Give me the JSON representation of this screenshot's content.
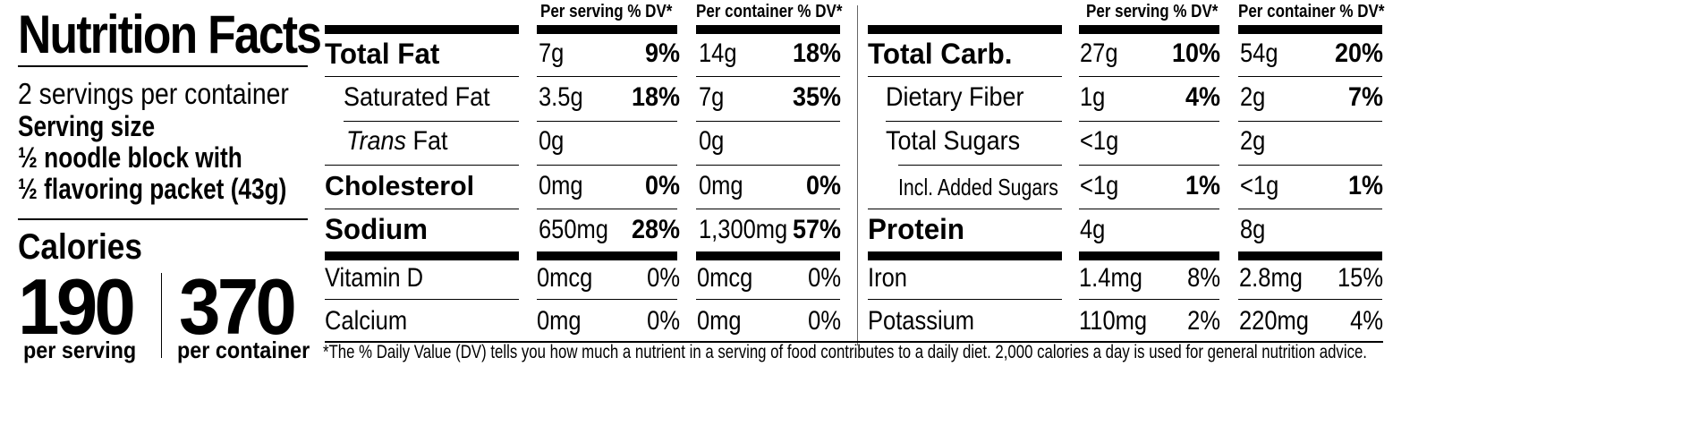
{
  "panel": {
    "title": "Nutrition Facts",
    "servings_per_container": "2 servings per container",
    "serving_size_label": "Serving size",
    "serving_size_line1": "½ noodle block with",
    "serving_size_line2": "½ flavoring packet (43g)",
    "calories_label": "Calories",
    "calories_per_serving": "190",
    "calories_per_serving_label": "per serving",
    "calories_per_container": "370",
    "calories_per_container_label": "per container"
  },
  "headers": {
    "per_serving": "Per serving % DV*",
    "per_container": "Per container % DV*"
  },
  "left_rows": [
    {
      "name": "Total Fat",
      "ps_amt": "7g",
      "ps_dv": "9%",
      "pc_amt": "14g",
      "pc_dv": "18%"
    },
    {
      "name": "Saturated Fat",
      "ps_amt": "3.5g",
      "ps_dv": "18%",
      "pc_amt": "7g",
      "pc_dv": "35%"
    },
    {
      "name_italic": "Trans",
      "name_rest": " Fat",
      "ps_amt": "0g",
      "ps_dv": "",
      "pc_amt": "0g",
      "pc_dv": ""
    },
    {
      "name": "Cholesterol",
      "ps_amt": "0mg",
      "ps_dv": "0%",
      "pc_amt": "0mg",
      "pc_dv": "0%"
    },
    {
      "name": "Sodium",
      "ps_amt": "650mg",
      "ps_dv": "28%",
      "pc_amt": "1,300mg",
      "pc_dv": "57%"
    },
    {
      "name": "Vitamin D",
      "ps_amt": "0mcg",
      "ps_dv": "0%",
      "pc_amt": "0mcg",
      "pc_dv": "0%"
    },
    {
      "name": "Calcium",
      "ps_amt": "0mg",
      "ps_dv": "0%",
      "pc_amt": "0mg",
      "pc_dv": "0%"
    }
  ],
  "right_rows": [
    {
      "name": "Total Carb.",
      "ps_amt": "27g",
      "ps_dv": "10%",
      "pc_amt": "54g",
      "pc_dv": "20%"
    },
    {
      "name": "Dietary Fiber",
      "ps_amt": "1g",
      "ps_dv": "4%",
      "pc_amt": "2g",
      "pc_dv": "7%"
    },
    {
      "name": "Total Sugars",
      "ps_amt": "<1g",
      "ps_dv": "",
      "pc_amt": "2g",
      "pc_dv": ""
    },
    {
      "name": "Incl. Added Sugars",
      "ps_amt": "<1g",
      "ps_dv": "1%",
      "pc_amt": "<1g",
      "pc_dv": "1%"
    },
    {
      "name": "Protein",
      "ps_amt": "4g",
      "ps_dv": "",
      "pc_amt": "8g",
      "pc_dv": ""
    },
    {
      "name": "Iron",
      "ps_amt": "1.4mg",
      "ps_dv": "8%",
      "pc_amt": "2.8mg",
      "pc_dv": "15%"
    },
    {
      "name": "Potassium",
      "ps_amt": "110mg",
      "ps_dv": "2%",
      "pc_amt": "220mg",
      "pc_dv": "4%"
    }
  ],
  "footnote": "*The % Daily Value (DV) tells you how much a nutrient in a serving of food contributes to a daily diet. 2,000 calories a day is used for general nutrition advice."
}
